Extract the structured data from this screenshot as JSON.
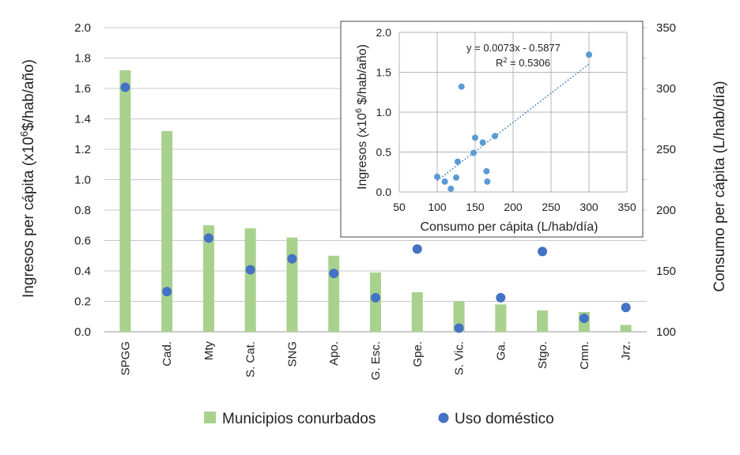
{
  "chart_data": {
    "main": {
      "type": "bar",
      "categories": [
        "SPGG",
        "Cad.",
        "Mty",
        "S. Cat.",
        "SNG",
        "Apo.",
        "G. Esc.",
        "Gpe.",
        "S. Vic.",
        "Ga.",
        "Stgo.",
        "Cmn.",
        "Jrz."
      ],
      "series": [
        {
          "name": "Municipios conurbados",
          "kind": "bar",
          "axis": "left",
          "values": [
            1.72,
            1.32,
            0.7,
            0.68,
            0.62,
            0.5,
            0.39,
            0.26,
            0.2,
            0.18,
            0.14,
            0.13,
            0.045
          ]
        },
        {
          "name": "Uso doméstico",
          "kind": "point",
          "axis": "right",
          "values": [
            301,
            133,
            177,
            151,
            160,
            148,
            128,
            168,
            103,
            128,
            166,
            111,
            120
          ]
        }
      ],
      "ylabel": "Ingresos per cápita (x10⁶$/hab/año)",
      "ylabel_base": "Ingresos per cápita (x10",
      "ylabel_sup": "6",
      "ylabel_rest": "$/hab/año)",
      "y2label": "Consumo per cápita (L/hab/día)",
      "ylim": [
        0,
        2.0
      ],
      "yticks": [
        "0.0",
        "0.2",
        "0.4",
        "0.6",
        "0.8",
        "1.0",
        "1.2",
        "1.4",
        "1.6",
        "1.8",
        "2.0"
      ],
      "y2lim": [
        100,
        350
      ],
      "y2ticks": [
        "100",
        "150",
        "200",
        "250",
        "300",
        "350"
      ],
      "colors": {
        "bar": "#a9d18e",
        "point": "#4472c4"
      }
    },
    "inset": {
      "type": "scatter",
      "x": [
        100,
        110,
        118,
        125,
        127,
        132,
        148,
        150,
        160,
        165,
        166,
        176,
        300
      ],
      "y": [
        0.19,
        0.13,
        0.04,
        0.18,
        0.38,
        1.32,
        0.49,
        0.68,
        0.62,
        0.26,
        0.13,
        0.7,
        1.72
      ],
      "xlabel": "Consumo per cápita (L/hab/día)",
      "ylabel": "Ingresos (x10⁶ $/hab/año)",
      "ylabel_base": "Ingresos (x10",
      "ylabel_sup": "6",
      "ylabel_rest": " $/hab/año)",
      "xlim": [
        50,
        350
      ],
      "xticks": [
        "50",
        "100",
        "150",
        "200",
        "250",
        "300",
        "350"
      ],
      "ylim": [
        0,
        2.0
      ],
      "yticks": [
        "0.0",
        "0.5",
        "1.0",
        "1.5",
        "2.0"
      ],
      "trendline": {
        "slope": 0.0073,
        "intercept": -0.5877,
        "x_from": 100,
        "x_to": 300
      },
      "equation": "y = 0.0073x - 0.5877",
      "r2_label": "R",
      "r2_sup": "2",
      "r2_value": " = 0.5306",
      "colors": {
        "point": "#5b9bd5",
        "trend": "#2e75b6"
      }
    }
  },
  "legend": {
    "bar_label": "Municipios conurbados",
    "point_label": "Uso doméstico"
  }
}
